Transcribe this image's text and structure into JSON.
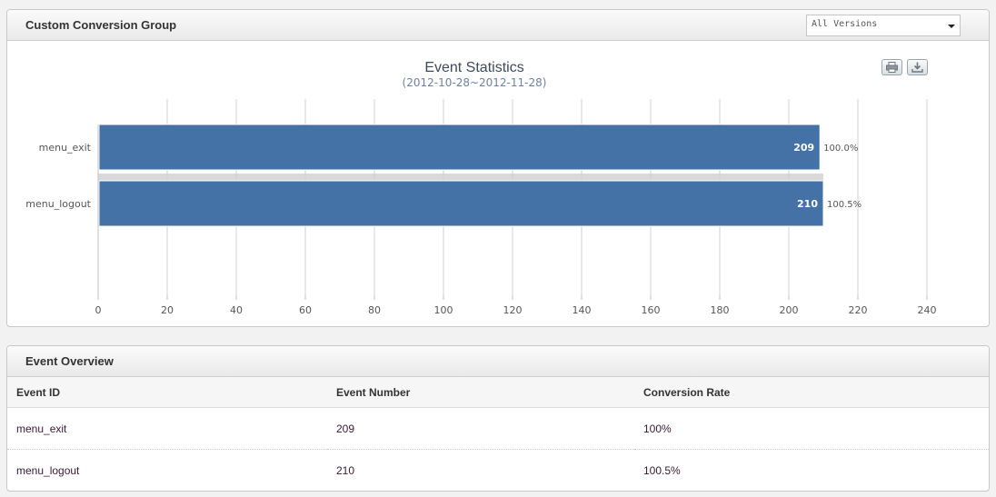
{
  "top_panel": {
    "title": "Custom Conversion Group",
    "version_select": {
      "selected": "All Versions"
    },
    "toolbar": {
      "print_icon": "printer-icon",
      "export_icon": "download-icon"
    }
  },
  "chart_data": {
    "type": "bar",
    "orientation": "horizontal",
    "title": "Event Statistics",
    "subtitle": "(2012-10-28~2012-11-28)",
    "categories": [
      "menu_exit",
      "menu_logout"
    ],
    "values": [
      209,
      210
    ],
    "value_labels": [
      "209",
      "210"
    ],
    "percent_labels": [
      "100.0%",
      "100.5%"
    ],
    "xlim": [
      0,
      240
    ],
    "xticks": [
      0,
      20,
      40,
      60,
      80,
      100,
      120,
      140,
      160,
      180,
      200,
      220,
      240
    ],
    "grid": true,
    "bar_color": "#4472a6",
    "highlight_band_color": "#d9d9d9"
  },
  "overview_panel": {
    "title": "Event Overview",
    "columns": [
      "Event ID",
      "Event Number",
      "Conversion Rate"
    ],
    "rows": [
      [
        "menu_exit",
        "209",
        "100%"
      ],
      [
        "menu_logout",
        "210",
        "100.5%"
      ]
    ]
  }
}
